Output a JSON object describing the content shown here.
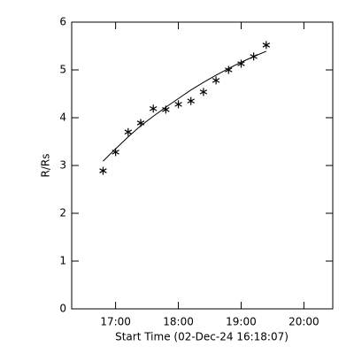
{
  "chart_data": {
    "type": "scatter",
    "x_label": "Start Time (02-Dec-24 16:18:07)",
    "y_label": "R/Rs",
    "x": [
      16.8,
      17.0,
      17.2,
      17.4,
      17.6,
      17.8,
      18.0,
      18.2,
      18.4,
      18.6,
      18.8,
      19.0,
      19.2,
      19.4
    ],
    "values": [
      2.89,
      3.28,
      3.7,
      3.89,
      4.19,
      4.17,
      4.28,
      4.35,
      4.54,
      4.78,
      5.0,
      5.13,
      5.28,
      5.52
    ],
    "fit": [
      3.09,
      3.35,
      3.6,
      3.83,
      4.03,
      4.22,
      4.4,
      4.58,
      4.74,
      4.89,
      5.03,
      5.16,
      5.28,
      5.39
    ],
    "color": "#000000",
    "xlim": [
      16.3,
      20.46
    ],
    "ylim": [
      0,
      6
    ],
    "xticks": [
      {
        "value": 17,
        "label": "17:00"
      },
      {
        "value": 18,
        "label": "18:00"
      },
      {
        "value": 19,
        "label": "19:00"
      },
      {
        "value": 20,
        "label": "20:00"
      }
    ],
    "yticks": [
      0,
      1,
      2,
      3,
      4,
      5,
      6
    ]
  }
}
